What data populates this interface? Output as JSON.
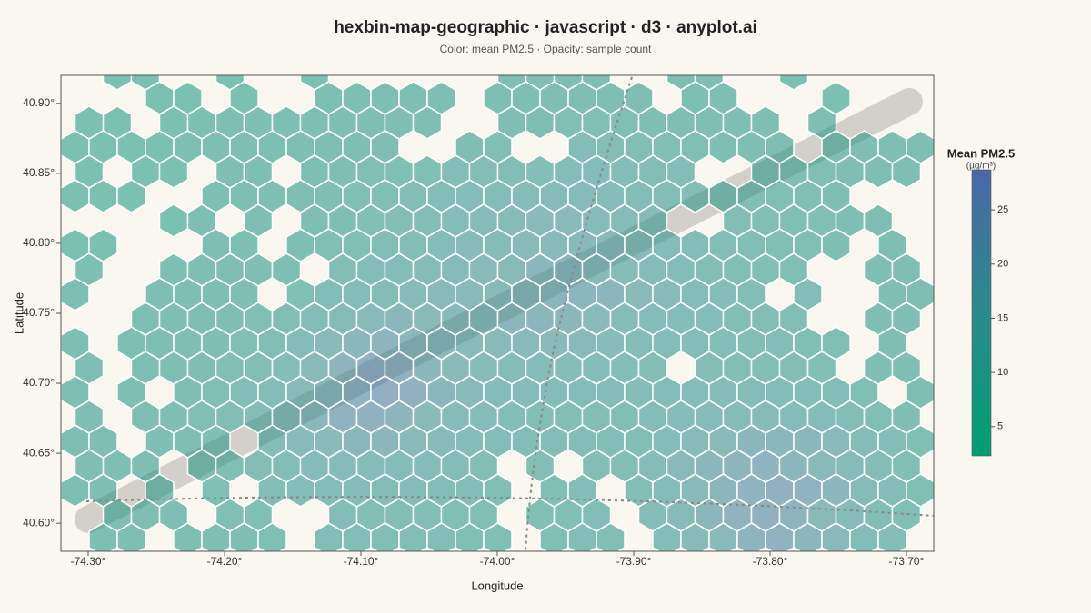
{
  "chart_data": {
    "type": "hexbin",
    "title": "hexbin-map-geographic · javascript · d3 · anyplot.ai",
    "subtitle": "Color: mean PM2.5 · Opacity: sample count",
    "x_label": "Longitude",
    "y_label": "Latitude",
    "xlim": [
      -74.32,
      -73.68
    ],
    "ylim": [
      40.58,
      40.92
    ],
    "xticks": [
      {
        "value": -74.3,
        "label": "-74.30°"
      },
      {
        "value": -74.2,
        "label": "-74.20°"
      },
      {
        "value": -74.1,
        "label": "-74.10°"
      },
      {
        "value": -74.0,
        "label": "-74.00°"
      },
      {
        "value": -73.9,
        "label": "-73.90°"
      },
      {
        "value": -73.8,
        "label": "-73.80°"
      },
      {
        "value": -73.7,
        "label": "-73.70°"
      }
    ],
    "yticks": [
      {
        "value": 40.6,
        "label": "40.60°"
      },
      {
        "value": 40.65,
        "label": "40.65°"
      },
      {
        "value": 40.7,
        "label": "40.70°"
      },
      {
        "value": 40.75,
        "label": "40.75°"
      },
      {
        "value": 40.8,
        "label": "40.80°"
      },
      {
        "value": 40.85,
        "label": "40.85°"
      },
      {
        "value": 40.9,
        "label": "40.90°"
      }
    ],
    "colorbar_title": "Mean PM2.5",
    "colorbar_unit": "(µg/m³)",
    "color_range": [
      2.3,
      28.7
    ],
    "color_ticks": [
      5,
      10,
      15,
      20,
      25
    ],
    "colors": [
      "#009e73",
      "#2a8a8a",
      "#4a67a8"
    ],
    "hex_rows": [
      [
        null,
        null,
        8,
        8,
        null,
        null,
        8,
        null,
        null,
        8,
        null,
        null,
        null,
        null,
        null,
        null,
        9,
        9,
        9,
        9,
        null,
        null,
        9,
        9,
        null,
        null,
        8,
        null,
        null,
        null,
        null
      ],
      [
        null,
        null,
        null,
        8,
        8,
        null,
        8,
        null,
        null,
        9,
        9,
        9,
        9,
        9,
        null,
        9,
        9,
        10,
        10,
        10,
        10,
        null,
        9,
        9,
        null,
        null,
        null,
        8,
        null,
        null,
        null
      ],
      [
        null,
        8,
        8,
        null,
        8,
        8,
        9,
        9,
        9,
        9,
        9,
        10,
        10,
        10,
        null,
        null,
        10,
        10,
        11,
        11,
        11,
        10,
        10,
        10,
        10,
        10,
        null,
        10,
        null,
        null,
        null
      ],
      [
        8,
        8,
        8,
        8,
        9,
        9,
        9,
        9,
        9,
        9,
        9,
        10,
        null,
        null,
        10,
        11,
        null,
        null,
        12,
        12,
        11,
        11,
        11,
        10,
        10,
        10,
        null,
        10,
        10,
        10,
        9
      ],
      [
        null,
        8,
        null,
        8,
        8,
        null,
        9,
        9,
        null,
        9,
        10,
        11,
        11,
        11,
        12,
        12,
        12,
        12,
        13,
        13,
        13,
        12,
        12,
        null,
        null,
        11,
        11,
        11,
        10,
        10,
        9
      ],
      [
        8,
        8,
        8,
        null,
        null,
        9,
        9,
        10,
        10,
        10,
        11,
        11,
        12,
        12,
        13,
        13,
        14,
        14,
        14,
        14,
        13,
        12,
        12,
        12,
        11,
        11,
        11,
        10,
        null,
        null,
        null
      ],
      [
        null,
        null,
        null,
        null,
        8,
        9,
        null,
        9,
        null,
        10,
        10,
        11,
        12,
        12,
        13,
        14,
        15,
        16,
        16,
        15,
        14,
        13,
        null,
        null,
        12,
        11,
        11,
        11,
        10,
        10,
        null
      ],
      [
        8,
        8,
        null,
        null,
        null,
        9,
        9,
        null,
        10,
        11,
        11,
        12,
        12,
        13,
        14,
        15,
        16,
        17,
        17,
        16,
        15,
        14,
        13,
        12,
        12,
        11,
        11,
        10,
        null,
        10,
        null
      ],
      [
        null,
        9,
        null,
        null,
        9,
        9,
        10,
        10,
        10,
        null,
        12,
        13,
        13,
        14,
        15,
        16,
        17,
        18,
        18,
        17,
        15,
        14,
        13,
        12,
        12,
        11,
        11,
        null,
        null,
        10,
        10
      ],
      [
        9,
        null,
        null,
        9,
        9,
        9,
        10,
        null,
        11,
        12,
        13,
        14,
        15,
        16,
        16,
        17,
        18,
        19,
        19,
        18,
        16,
        15,
        14,
        13,
        12,
        null,
        12,
        null,
        null,
        10,
        10
      ],
      [
        null,
        null,
        null,
        9,
        9,
        9,
        10,
        11,
        12,
        13,
        15,
        17,
        18,
        17,
        17,
        17,
        18,
        19,
        18,
        17,
        15,
        14,
        13,
        13,
        12,
        12,
        12,
        null,
        null,
        10,
        10
      ],
      [
        9,
        null,
        9,
        9,
        10,
        10,
        11,
        12,
        14,
        17,
        19,
        20,
        19,
        18,
        17,
        16,
        16,
        16,
        16,
        15,
        14,
        13,
        13,
        12,
        12,
        12,
        11,
        11,
        null,
        10,
        null
      ],
      [
        null,
        10,
        null,
        9,
        10,
        10,
        11,
        12,
        13,
        16,
        20,
        23,
        22,
        19,
        17,
        15,
        14,
        14,
        14,
        13,
        13,
        12,
        null,
        12,
        12,
        12,
        12,
        11,
        null,
        10,
        10
      ],
      [
        9,
        null,
        9,
        null,
        10,
        11,
        12,
        13,
        15,
        18,
        21,
        24,
        22,
        19,
        16,
        14,
        13,
        13,
        13,
        13,
        13,
        12,
        13,
        13,
        13,
        13,
        12,
        12,
        11,
        null,
        10
      ],
      [
        null,
        10,
        null,
        10,
        10,
        11,
        12,
        14,
        16,
        18,
        21,
        22,
        20,
        17,
        15,
        14,
        13,
        12,
        12,
        12,
        12,
        13,
        14,
        15,
        15,
        15,
        14,
        13,
        12,
        11,
        10
      ],
      [
        9,
        10,
        null,
        10,
        10,
        11,
        null,
        13,
        15,
        16,
        18,
        18,
        17,
        15,
        14,
        13,
        12,
        12,
        12,
        12,
        12,
        13,
        15,
        17,
        18,
        19,
        18,
        16,
        14,
        12,
        11
      ],
      [
        null,
        10,
        10,
        10,
        null,
        10,
        11,
        12,
        13,
        14,
        15,
        15,
        14,
        13,
        13,
        12,
        null,
        12,
        null,
        12,
        12,
        14,
        16,
        18,
        20,
        21,
        19,
        17,
        15,
        13,
        11
      ],
      [
        9,
        10,
        null,
        10,
        null,
        11,
        null,
        12,
        12,
        13,
        13,
        13,
        13,
        12,
        12,
        12,
        null,
        11,
        12,
        null,
        12,
        14,
        16,
        19,
        21,
        22,
        21,
        18,
        15,
        13,
        11
      ],
      [
        null,
        null,
        9,
        10,
        10,
        null,
        11,
        11,
        null,
        null,
        12,
        12,
        12,
        12,
        11,
        11,
        null,
        11,
        11,
        12,
        null,
        13,
        15,
        18,
        21,
        22,
        20,
        17,
        14,
        12,
        11
      ],
      [
        null,
        9,
        9,
        null,
        10,
        10,
        10,
        11,
        null,
        12,
        12,
        12,
        12,
        12,
        11,
        11,
        null,
        11,
        12,
        12,
        null,
        13,
        15,
        17,
        20,
        21,
        19,
        16,
        13,
        12,
        null
      ]
    ]
  }
}
